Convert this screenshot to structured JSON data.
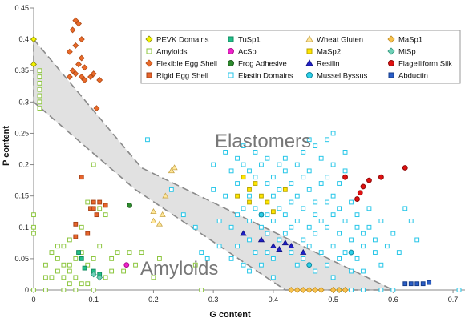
{
  "chart_data": {
    "type": "scatter",
    "xlabel": "G content",
    "ylabel": "P content",
    "xlim": [
      0,
      0.72
    ],
    "ylim": [
      0,
      0.45
    ],
    "x_ticks": [
      "0",
      "0.1",
      "0.2",
      "0.3",
      "0.4",
      "0.5",
      "0.6",
      "0.7"
    ],
    "y_ticks": [
      "0",
      "0.05",
      "0.1",
      "0.15",
      "0.2",
      "0.25",
      "0.3",
      "0.35",
      "0.4",
      "0.45"
    ],
    "grid": false,
    "legend_position": "top-right",
    "annotations": [
      "Elastomers",
      "Amyloids"
    ],
    "elastomer_region": [
      [
        0,
        0.4
      ],
      [
        0.18,
        0.195
      ],
      [
        0.6,
        0
      ],
      [
        0.42,
        0
      ],
      [
        0.17,
        0.16
      ],
      [
        0,
        0.3
      ]
    ],
    "series": [
      {
        "name": "PEVK Domains",
        "marker": "diamond",
        "color": "#f4f400",
        "stroke": "#8a8a00",
        "points": [
          [
            0,
            0.4
          ],
          [
            0,
            0.36
          ]
        ]
      },
      {
        "name": "TuSp1",
        "marker": "square",
        "color": "#22c08a",
        "stroke": "#138a60",
        "points": [
          [
            0.08,
            0.05
          ],
          [
            0.085,
            0.035
          ],
          [
            0.1,
            0.03
          ],
          [
            0.11,
            0.025
          ],
          [
            0.075,
            0.06
          ]
        ]
      },
      {
        "name": "Wheat Gluten",
        "marker": "triangle",
        "color": "#ffe79a",
        "stroke": "#c9a64a",
        "points": [
          [
            0.2,
            0.125
          ],
          [
            0.22,
            0.15
          ],
          [
            0.21,
            0.105
          ],
          [
            0.215,
            0.12
          ],
          [
            0.2,
            0.11
          ],
          [
            0.23,
            0.19
          ],
          [
            0.235,
            0.195
          ]
        ]
      },
      {
        "name": "MaSp1",
        "marker": "diamond",
        "color": "#f7c24e",
        "stroke": "#c08a1e",
        "points": [
          [
            0.43,
            0
          ],
          [
            0.45,
            0
          ],
          [
            0.47,
            0
          ],
          [
            0.5,
            0
          ],
          [
            0.52,
            0
          ],
          [
            0.44,
            0
          ],
          [
            0.46,
            0
          ],
          [
            0.48,
            0
          ],
          [
            0.51,
            0
          ]
        ]
      },
      {
        "name": "Amyloids",
        "marker": "square",
        "color": "#ffffff",
        "stroke": "#8cc63e",
        "points": [
          [
            0.01,
            0.35
          ],
          [
            0.01,
            0.34
          ],
          [
            0.01,
            0.32
          ],
          [
            0.01,
            0.31
          ],
          [
            0.01,
            0.3
          ],
          [
            0.01,
            0.29
          ],
          [
            0.01,
            0.33
          ],
          [
            0,
            0.1
          ],
          [
            0,
            0.09
          ],
          [
            0,
            0.12
          ],
          [
            0,
            0.0
          ],
          [
            0.02,
            0.0
          ],
          [
            0.05,
            0.0
          ],
          [
            0.07,
            0.0
          ],
          [
            0.1,
            0.0
          ],
          [
            0.03,
            0.06
          ],
          [
            0.04,
            0.05
          ],
          [
            0.05,
            0.07
          ],
          [
            0.06,
            0.04
          ],
          [
            0.07,
            0.05
          ],
          [
            0.08,
            0.06
          ],
          [
            0.09,
            0.04
          ],
          [
            0.1,
            0.05
          ],
          [
            0.04,
            0.03
          ],
          [
            0.05,
            0.02
          ],
          [
            0.06,
            0.03
          ],
          [
            0.03,
            0.02
          ],
          [
            0.07,
            0.02
          ],
          [
            0.08,
            0.01
          ],
          [
            0.06,
            0.01
          ],
          [
            0.09,
            0.01
          ],
          [
            0.12,
            0.02
          ],
          [
            0.13,
            0.03
          ],
          [
            0.14,
            0.06
          ],
          [
            0.16,
            0.06
          ],
          [
            0.18,
            0.06
          ],
          [
            0.15,
            0.03
          ],
          [
            0.11,
            0.13
          ],
          [
            0.12,
            0.12
          ],
          [
            0.1,
            0.2
          ],
          [
            0.09,
            0.14
          ],
          [
            0.08,
            0.1
          ],
          [
            0.05,
            0.04
          ],
          [
            0.02,
            0.04
          ],
          [
            0.04,
            0.07
          ],
          [
            0.06,
            0.08
          ],
          [
            0.11,
            0.07
          ],
          [
            0.13,
            0.05
          ],
          [
            0.17,
            0.04
          ],
          [
            0.2,
            0.02
          ],
          [
            0.21,
            0.05
          ],
          [
            0.27,
            0.04
          ],
          [
            0.28,
            0.0
          ],
          [
            0.02,
            0.02
          ]
        ]
      },
      {
        "name": "AcSp",
        "marker": "circle",
        "color": "#ee22cc",
        "stroke": "#b0108e",
        "points": [
          [
            0.155,
            0.04
          ]
        ]
      },
      {
        "name": "MaSp2",
        "marker": "square",
        "color": "#ffe600",
        "stroke": "#b8a400",
        "points": [
          [
            0.35,
            0.18
          ],
          [
            0.36,
            0.16
          ],
          [
            0.37,
            0.17
          ],
          [
            0.39,
            0.14
          ],
          [
            0.38,
            0.15
          ],
          [
            0.34,
            0.15
          ],
          [
            0.42,
            0.16
          ],
          [
            0.4,
            0.125
          ],
          [
            0.36,
            0.14
          ]
        ]
      },
      {
        "name": "MiSp",
        "marker": "diamond",
        "color": "#6fd1b8",
        "stroke": "#2c9478",
        "points": [
          [
            0.1,
            0.025
          ],
          [
            0.11,
            0.02
          ]
        ]
      },
      {
        "name": "Flexible Egg Shell",
        "marker": "diamond",
        "color": "#ea6a2a",
        "stroke": "#b04a14",
        "points": [
          [
            0.07,
            0.43
          ],
          [
            0.075,
            0.425
          ],
          [
            0.065,
            0.415
          ],
          [
            0.08,
            0.4
          ],
          [
            0.07,
            0.39
          ],
          [
            0.06,
            0.38
          ],
          [
            0.08,
            0.37
          ],
          [
            0.075,
            0.36
          ],
          [
            0.085,
            0.355
          ],
          [
            0.065,
            0.35
          ],
          [
            0.06,
            0.34
          ],
          [
            0.07,
            0.345
          ],
          [
            0.08,
            0.34
          ],
          [
            0.095,
            0.34
          ],
          [
            0.1,
            0.345
          ],
          [
            0.11,
            0.335
          ],
          [
            0.085,
            0.335
          ],
          [
            0.105,
            0.29
          ]
        ]
      },
      {
        "name": "Frog Adhesive",
        "marker": "circle",
        "color": "#2e8b2e",
        "stroke": "#1a5a1a",
        "points": [
          [
            0.16,
            0.135
          ]
        ]
      },
      {
        "name": "Resilin",
        "marker": "triangle",
        "color": "#2020c8",
        "stroke": "#101080",
        "points": [
          [
            0.35,
            0.09
          ],
          [
            0.38,
            0.08
          ],
          [
            0.4,
            0.07
          ],
          [
            0.42,
            0.075
          ],
          [
            0.41,
            0.065
          ],
          [
            0.43,
            0.07
          ],
          [
            0.45,
            0.06
          ]
        ]
      },
      {
        "name": "Flagelliform Silk",
        "marker": "circle",
        "color": "#e01010",
        "stroke": "#900808",
        "points": [
          [
            0.54,
            0.145
          ],
          [
            0.55,
            0.165
          ],
          [
            0.56,
            0.175
          ],
          [
            0.58,
            0.18
          ],
          [
            0.52,
            0.18
          ],
          [
            0.62,
            0.195
          ],
          [
            0.545,
            0.155
          ]
        ]
      },
      {
        "name": "Rigid Egg Shell",
        "marker": "square",
        "color": "#e8642c",
        "stroke": "#a84418",
        "points": [
          [
            0.08,
            0.18
          ],
          [
            0.1,
            0.14
          ],
          [
            0.11,
            0.14
          ],
          [
            0.095,
            0.13
          ],
          [
            0.12,
            0.135
          ],
          [
            0.105,
            0.12
          ],
          [
            0.07,
            0.105
          ],
          [
            0.09,
            0.09
          ],
          [
            0.07,
            0.085
          ],
          [
            0.1,
            0.13
          ]
        ]
      },
      {
        "name": "Elastin Domains",
        "marker": "square",
        "color": "#ffffff",
        "stroke": "#26c6e8",
        "points": [
          [
            0.19,
            0.24
          ],
          [
            0.23,
            0.16
          ],
          [
            0.25,
            0.12
          ],
          [
            0.27,
            0.1
          ],
          [
            0.28,
            0.06
          ],
          [
            0.29,
            0.05
          ],
          [
            0.3,
            0.2
          ],
          [
            0.3,
            0.16
          ],
          [
            0.31,
            0.11
          ],
          [
            0.31,
            0.07
          ],
          [
            0.32,
            0.22
          ],
          [
            0.32,
            0.15
          ],
          [
            0.33,
            0.19
          ],
          [
            0.33,
            0.1
          ],
          [
            0.33,
            0.05
          ],
          [
            0.34,
            0.21
          ],
          [
            0.34,
            0.17
          ],
          [
            0.34,
            0.12
          ],
          [
            0.34,
            0.07
          ],
          [
            0.35,
            0.23
          ],
          [
            0.35,
            0.2
          ],
          [
            0.35,
            0.13
          ],
          [
            0.35,
            0.04
          ],
          [
            0.36,
            0.19
          ],
          [
            0.36,
            0.15
          ],
          [
            0.36,
            0.11
          ],
          [
            0.36,
            0.08
          ],
          [
            0.37,
            0.22
          ],
          [
            0.37,
            0.18
          ],
          [
            0.37,
            0.13
          ],
          [
            0.37,
            0.06
          ],
          [
            0.38,
            0.2
          ],
          [
            0.38,
            0.12
          ],
          [
            0.38,
            0.1
          ],
          [
            0.38,
            0.04
          ],
          [
            0.39,
            0.21
          ],
          [
            0.39,
            0.17
          ],
          [
            0.39,
            0.12
          ],
          [
            0.39,
            0.09
          ],
          [
            0.39,
            0.06
          ],
          [
            0.4,
            0.18
          ],
          [
            0.4,
            0.15
          ],
          [
            0.4,
            0.11
          ],
          [
            0.4,
            0.05
          ],
          [
            0.41,
            0.2
          ],
          [
            0.41,
            0.16
          ],
          [
            0.41,
            0.13
          ],
          [
            0.41,
            0.08
          ],
          [
            0.42,
            0.21
          ],
          [
            0.42,
            0.19
          ],
          [
            0.42,
            0.12
          ],
          [
            0.42,
            0.09
          ],
          [
            0.43,
            0.17
          ],
          [
            0.43,
            0.14
          ],
          [
            0.43,
            0.1
          ],
          [
            0.43,
            0.06
          ],
          [
            0.44,
            0.2
          ],
          [
            0.44,
            0.15
          ],
          [
            0.44,
            0.11
          ],
          [
            0.44,
            0.04
          ],
          [
            0.45,
            0.22
          ],
          [
            0.45,
            0.18
          ],
          [
            0.45,
            0.13
          ],
          [
            0.45,
            0.08
          ],
          [
            0.45,
            0.05
          ],
          [
            0.46,
            0.19
          ],
          [
            0.46,
            0.16
          ],
          [
            0.46,
            0.1
          ],
          [
            0.46,
            0.07
          ],
          [
            0.47,
            0.23
          ],
          [
            0.47,
            0.14
          ],
          [
            0.47,
            0.12
          ],
          [
            0.47,
            0.09
          ],
          [
            0.47,
            0.03
          ],
          [
            0.48,
            0.21
          ],
          [
            0.48,
            0.17
          ],
          [
            0.48,
            0.11
          ],
          [
            0.48,
            0.06
          ],
          [
            0.49,
            0.24
          ],
          [
            0.49,
            0.18
          ],
          [
            0.49,
            0.14
          ],
          [
            0.49,
            0.1
          ],
          [
            0.49,
            0.04
          ],
          [
            0.5,
            0.2
          ],
          [
            0.5,
            0.15
          ],
          [
            0.5,
            0.12
          ],
          [
            0.5,
            0.07
          ],
          [
            0.5,
            0.02
          ],
          [
            0.51,
            0.17
          ],
          [
            0.51,
            0.13
          ],
          [
            0.51,
            0.09
          ],
          [
            0.51,
            0.05
          ],
          [
            0.52,
            0.22
          ],
          [
            0.52,
            0.19
          ],
          [
            0.52,
            0.11
          ],
          [
            0.52,
            0.06
          ],
          [
            0.53,
            0.14
          ],
          [
            0.53,
            0.08
          ],
          [
            0.53,
            0.03
          ],
          [
            0.54,
            0.12
          ],
          [
            0.54,
            0.1
          ],
          [
            0.54,
            0.05
          ],
          [
            0.55,
            0.09
          ],
          [
            0.55,
            0.07
          ],
          [
            0.55,
            0.03
          ],
          [
            0.56,
            0.13
          ],
          [
            0.56,
            0.1
          ],
          [
            0.57,
            0.08
          ],
          [
            0.57,
            0.06
          ],
          [
            0.58,
            0.11
          ],
          [
            0.58,
            0.04
          ],
          [
            0.59,
            0.07
          ],
          [
            0.6,
            0.09
          ],
          [
            0.61,
            0.06
          ],
          [
            0.62,
            0.13
          ],
          [
            0.63,
            0.11
          ],
          [
            0.64,
            0.08
          ],
          [
            0.5,
            0.25
          ],
          [
            0.46,
            0.24
          ],
          [
            0.51,
            0.0
          ],
          [
            0.53,
            0.0
          ],
          [
            0.55,
            0.0
          ],
          [
            0.58,
            0.0
          ],
          [
            0.6,
            0.0
          ],
          [
            0.71,
            0.0
          ],
          [
            0.36,
            0.03
          ],
          [
            0.4,
            0.02
          ]
        ]
      },
      {
        "name": "Mussel Byssus",
        "marker": "circle",
        "color": "#2ed0e8",
        "stroke": "#0e8aa0",
        "points": [
          [
            0.46,
            0.04
          ],
          [
            0.53,
            0.06
          ],
          [
            0.38,
            0.12
          ]
        ]
      },
      {
        "name": "Abductin",
        "marker": "square",
        "color": "#2a5ec8",
        "stroke": "#163c8a",
        "points": [
          [
            0.63,
            0.01
          ],
          [
            0.64,
            0.01
          ],
          [
            0.65,
            0.01
          ],
          [
            0.62,
            0.01
          ],
          [
            0.66,
            0.012
          ]
        ]
      }
    ]
  }
}
